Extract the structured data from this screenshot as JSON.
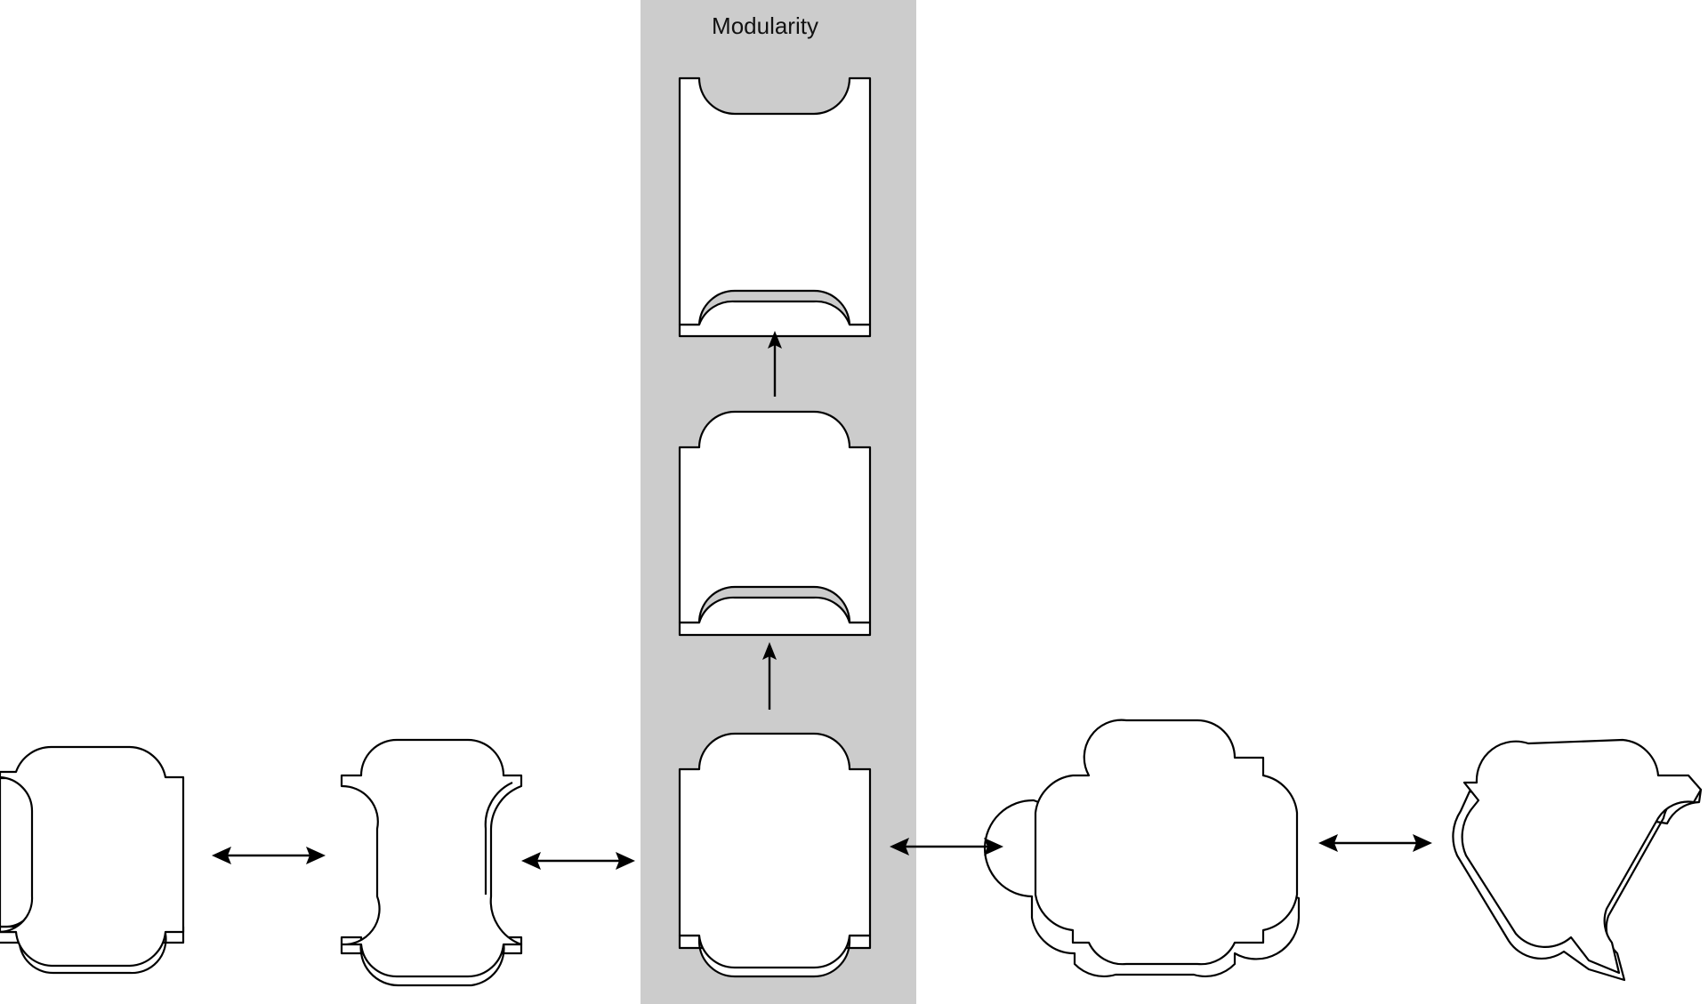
{
  "diagram": {
    "column_title": "Modularity",
    "colors": {
      "column_background": "#cccccc",
      "stroke": "#000000",
      "fill": "#ffffff"
    },
    "pieces": [
      {
        "name": "piece-left-edge"
      },
      {
        "name": "piece-left"
      },
      {
        "name": "piece-base"
      },
      {
        "name": "piece-middle"
      },
      {
        "name": "piece-top"
      },
      {
        "name": "piece-cross"
      },
      {
        "name": "piece-corner"
      }
    ],
    "connections": [
      {
        "from": "piece-left-edge",
        "to": "piece-left",
        "kind": "bidirectional"
      },
      {
        "from": "piece-left",
        "to": "piece-base",
        "kind": "bidirectional"
      },
      {
        "from": "piece-base",
        "to": "piece-cross",
        "kind": "bidirectional"
      },
      {
        "from": "piece-cross",
        "to": "piece-corner",
        "kind": "bidirectional"
      },
      {
        "from": "piece-base",
        "to": "piece-middle",
        "kind": "up"
      },
      {
        "from": "piece-middle",
        "to": "piece-top",
        "kind": "up"
      }
    ]
  }
}
